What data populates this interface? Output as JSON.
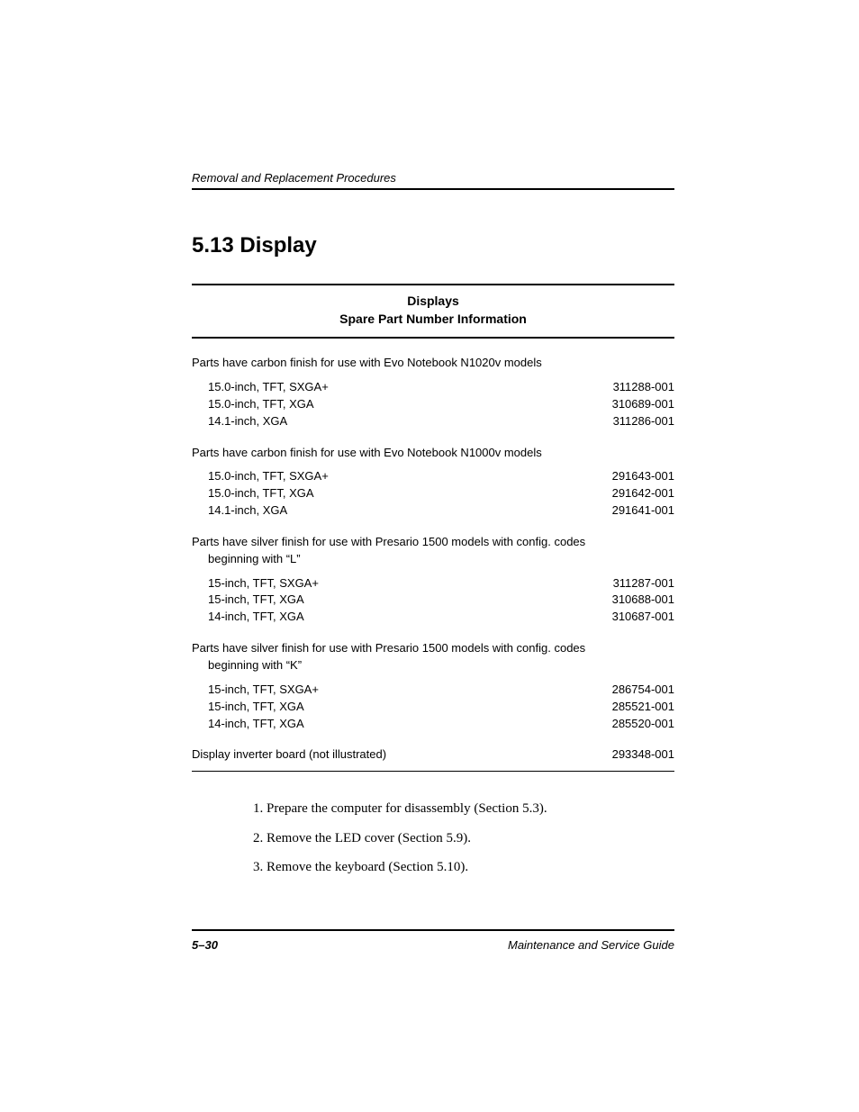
{
  "header": {
    "running": "Removal and Replacement Procedures"
  },
  "section": {
    "title": "5.13 Display"
  },
  "table": {
    "title_line1": "Displays",
    "title_line2": "Spare Part Number Information",
    "groups": [
      {
        "heading": "Parts have carbon finish for use with Evo Notebook N1020v models",
        "rows": [
          {
            "label": "15.0-inch, TFT, SXGA+",
            "value": "311288-001"
          },
          {
            "label": "15.0-inch, TFT, XGA",
            "value": "310689-001"
          },
          {
            "label": "14.1-inch, XGA",
            "value": "311286-001"
          }
        ]
      },
      {
        "heading": "Parts have carbon finish for use with Evo Notebook N1000v models",
        "rows": [
          {
            "label": "15.0-inch, TFT, SXGA+",
            "value": "291643-001"
          },
          {
            "label": "15.0-inch, TFT, XGA",
            "value": "291642-001"
          },
          {
            "label": "14.1-inch, XGA",
            "value": "291641-001"
          }
        ]
      },
      {
        "heading": "Parts have silver finish for use with Presario 1500 models with config. codes beginning with “L”",
        "rows": [
          {
            "label": "15-inch, TFT, SXGA+",
            "value": "311287-001"
          },
          {
            "label": "15-inch, TFT, XGA",
            "value": "310688-001"
          },
          {
            "label": "14-inch, TFT, XGA",
            "value": "310687-001"
          }
        ]
      },
      {
        "heading": "Parts have silver finish for use with Presario 1500 models with config. codes beginning with “K”",
        "rows": [
          {
            "label": "15-inch, TFT, SXGA+",
            "value": "286754-001"
          },
          {
            "label": "15-inch, TFT, XGA",
            "value": "285521-001"
          },
          {
            "label": "14-inch, TFT, XGA",
            "value": "285520-001"
          }
        ]
      }
    ],
    "standalone": {
      "label": "Display inverter board (not illustrated)",
      "value": "293348-001"
    }
  },
  "steps": [
    "1. Prepare the computer for disassembly (Section 5.3).",
    "2. Remove the LED cover (Section 5.9).",
    "3. Remove the keyboard (Section 5.10)."
  ],
  "footer": {
    "page": "5–30",
    "doc": "Maintenance and Service Guide"
  }
}
